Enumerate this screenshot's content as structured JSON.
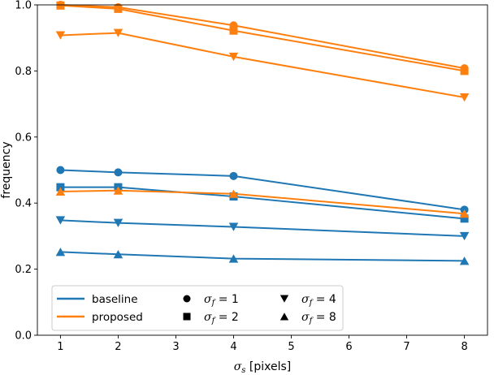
{
  "chart_data": {
    "type": "line",
    "xlabel": "σ_s [pixels]",
    "ylabel": "frequency",
    "xlim": [
      0.6,
      8.4
    ],
    "ylim": [
      0.0,
      1.0
    ],
    "x": [
      1,
      2,
      4,
      8
    ],
    "xticks": [
      "1",
      "2",
      "3",
      "4",
      "5",
      "6",
      "7",
      "8"
    ],
    "yticks": [
      "0.0",
      "0.2",
      "0.4",
      "0.6",
      "0.8",
      "1.0"
    ],
    "grid": false,
    "legend_placement": "lower-left",
    "methods": [
      {
        "name": "baseline",
        "color": "#1f77b4"
      },
      {
        "name": "proposed",
        "color": "#ff7f0e"
      }
    ],
    "markers": [
      {
        "label_main": "σ",
        "label_sub": "f",
        "label_value": " = 1",
        "shape": "circle"
      },
      {
        "label_main": "σ",
        "label_sub": "f",
        "label_value": " = 2",
        "shape": "square"
      },
      {
        "label_main": "σ",
        "label_sub": "f",
        "label_value": " = 4",
        "shape": "triangle-down"
      },
      {
        "label_main": "σ",
        "label_sub": "f",
        "label_value": " = 8",
        "shape": "triangle-up"
      }
    ],
    "series": [
      {
        "method": "baseline",
        "sigma_f": 1,
        "marker": "circle",
        "values": [
          0.5,
          0.493,
          0.482,
          0.38
        ]
      },
      {
        "method": "baseline",
        "sigma_f": 2,
        "marker": "square",
        "values": [
          0.448,
          0.448,
          0.42,
          0.353
        ]
      },
      {
        "method": "baseline",
        "sigma_f": 4,
        "marker": "triangle-down",
        "values": [
          0.348,
          0.34,
          0.328,
          0.3
        ]
      },
      {
        "method": "baseline",
        "sigma_f": 8,
        "marker": "triangle-up",
        "values": [
          0.252,
          0.245,
          0.232,
          0.225
        ]
      },
      {
        "method": "proposed",
        "sigma_f": 1,
        "marker": "circle",
        "values": [
          1.0,
          0.993,
          0.938,
          0.808
        ]
      },
      {
        "method": "proposed",
        "sigma_f": 2,
        "marker": "square",
        "values": [
          0.998,
          0.988,
          0.922,
          0.8
        ]
      },
      {
        "method": "proposed",
        "sigma_f": 4,
        "marker": "triangle-down",
        "values": [
          0.908,
          0.915,
          0.843,
          0.72
        ]
      },
      {
        "method": "proposed",
        "sigma_f": 8,
        "marker": "triangle-up",
        "values": [
          0.435,
          0.438,
          0.428,
          0.368
        ]
      }
    ]
  }
}
